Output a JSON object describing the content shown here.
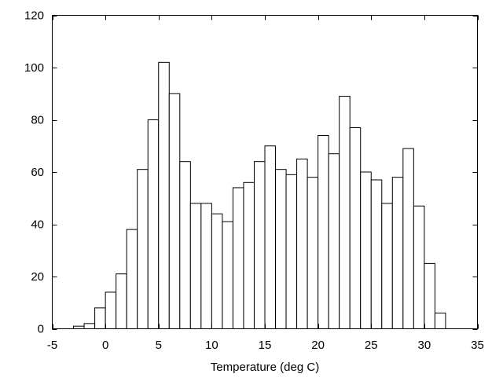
{
  "chart_data": {
    "type": "bar",
    "title": "",
    "xlabel": "Temperature (deg C)",
    "ylabel": "",
    "xlim": [
      -5,
      35
    ],
    "ylim": [
      0,
      120
    ],
    "x_ticks": [
      "-5",
      "0",
      "5",
      "10",
      "15",
      "20",
      "25",
      "30",
      "35"
    ],
    "y_ticks": [
      "0",
      "20",
      "40",
      "60",
      "80",
      "100",
      "120"
    ],
    "grid": false,
    "legend": "none",
    "bar_fill": "#ffffff",
    "bar_stroke": "#000000",
    "bin_width": 1,
    "bins": [
      {
        "x0": -3,
        "value": 1
      },
      {
        "x0": -2,
        "value": 2
      },
      {
        "x0": -1,
        "value": 8
      },
      {
        "x0": 0,
        "value": 14
      },
      {
        "x0": 1,
        "value": 21
      },
      {
        "x0": 2,
        "value": 38
      },
      {
        "x0": 3,
        "value": 61
      },
      {
        "x0": 4,
        "value": 80
      },
      {
        "x0": 5,
        "value": 102
      },
      {
        "x0": 6,
        "value": 90
      },
      {
        "x0": 7,
        "value": 64
      },
      {
        "x0": 8,
        "value": 48
      },
      {
        "x0": 9,
        "value": 48
      },
      {
        "x0": 10,
        "value": 44
      },
      {
        "x0": 11,
        "value": 41
      },
      {
        "x0": 12,
        "value": 54
      },
      {
        "x0": 13,
        "value": 56
      },
      {
        "x0": 14,
        "value": 64
      },
      {
        "x0": 15,
        "value": 70
      },
      {
        "x0": 16,
        "value": 61
      },
      {
        "x0": 17,
        "value": 59
      },
      {
        "x0": 18,
        "value": 65
      },
      {
        "x0": 19,
        "value": 58
      },
      {
        "x0": 20,
        "value": 74
      },
      {
        "x0": 21,
        "value": 67
      },
      {
        "x0": 22,
        "value": 89
      },
      {
        "x0": 23,
        "value": 77
      },
      {
        "x0": 24,
        "value": 60
      },
      {
        "x0": 25,
        "value": 57
      },
      {
        "x0": 26,
        "value": 48
      },
      {
        "x0": 27,
        "value": 58
      },
      {
        "x0": 28,
        "value": 69
      },
      {
        "x0": 29,
        "value": 47
      },
      {
        "x0": 30,
        "value": 25
      },
      {
        "x0": 31,
        "value": 6
      }
    ]
  }
}
